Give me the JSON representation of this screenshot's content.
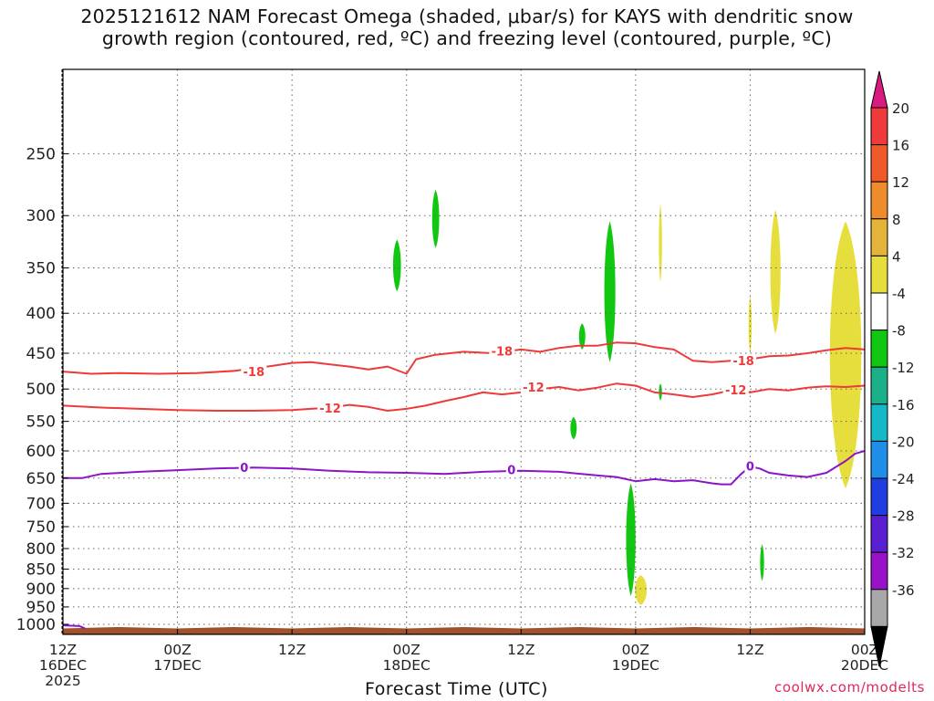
{
  "title": {
    "line1": "2025121612 NAM Forecast Omega (shaded, μbar/s) for KAYS with dendritic snow",
    "line2": "growth region (contoured, red, ºC) and freezing level (contoured, purple, ºC)"
  },
  "credit": "coolwx.com/modelts",
  "chart_data": {
    "type": "heatmap",
    "title": "2025121612 NAM Forecast Omega (shaded, μbar/s) for KAYS with dendritic snow growth region (contoured, red, ºC) and freezing level (contoured, purple, ºC)",
    "xlabel": "Forecast Time (UTC)",
    "ylabel": "",
    "y_axis": {
      "scale": "log",
      "reversed": true,
      "range": [
        195,
        1030
      ],
      "ticks": [
        250,
        300,
        350,
        400,
        450,
        500,
        550,
        600,
        650,
        700,
        750,
        800,
        850,
        900,
        950,
        1000
      ]
    },
    "x_axis": {
      "range_hours": [
        0,
        84
      ],
      "ticks": [
        {
          "h": 0,
          "lines": [
            "12Z",
            "16DEC",
            "2025"
          ]
        },
        {
          "h": 12,
          "lines": [
            "00Z",
            "17DEC"
          ]
        },
        {
          "h": 24,
          "lines": [
            "12Z"
          ]
        },
        {
          "h": 36,
          "lines": [
            "00Z",
            "18DEC"
          ]
        },
        {
          "h": 48,
          "lines": [
            "12Z"
          ]
        },
        {
          "h": 60,
          "lines": [
            "00Z",
            "19DEC"
          ]
        },
        {
          "h": 72,
          "lines": [
            "12Z"
          ]
        },
        {
          "h": 84,
          "lines": [
            "00Z",
            "20DEC"
          ]
        }
      ]
    },
    "grid": true,
    "colorbar": {
      "labels": [
        "20",
        "16",
        "12",
        "8",
        "4",
        "-4",
        "-8",
        "-12",
        "-16",
        "-20",
        "-24",
        "-28",
        "-32",
        "-36"
      ],
      "colors": [
        "#d91b80",
        "#ee3a3a",
        "#f05a28",
        "#ee8b2a",
        "#e4b33a",
        "#e6de3c",
        "#ffffff",
        "#12c712",
        "#1bb08a",
        "#14b8c8",
        "#1e8ee8",
        "#1f3ee0",
        "#5a1fd2",
        "#9a12c8",
        "#a8a8a8",
        "#000000"
      ]
    },
    "omega_regions": [
      {
        "value": -6,
        "color": "#12c712",
        "h": [
          34.5,
          35.5
        ],
        "p": [
          322,
          375
        ]
      },
      {
        "value": -6,
        "color": "#12c712",
        "h": [
          38.6,
          39.5
        ],
        "p": [
          278,
          330
        ]
      },
      {
        "value": -6,
        "color": "#12c712",
        "h": [
          54.0,
          54.8
        ],
        "p": [
          412,
          445
        ]
      },
      {
        "value": -6,
        "color": "#12c712",
        "h": [
          56.6,
          58.0
        ],
        "p": [
          305,
          462
        ]
      },
      {
        "value": -6,
        "color": "#12c712",
        "h": [
          53.1,
          53.9
        ],
        "p": [
          543,
          580
        ]
      },
      {
        "value": -6,
        "color": "#12c712",
        "h": [
          58.9,
          60.1
        ],
        "p": [
          660,
          920
        ]
      },
      {
        "value": -6,
        "color": "#12c712",
        "h": [
          62.4,
          62.8
        ],
        "p": [
          492,
          517
        ]
      },
      {
        "value": -6,
        "color": "#12c712",
        "h": [
          73.0,
          73.5
        ],
        "p": [
          790,
          880
        ]
      },
      {
        "value": 5,
        "color": "#e6de3c",
        "h": [
          62.4,
          62.8
        ],
        "p": [
          290,
          365
        ]
      },
      {
        "value": 5,
        "color": "#e6de3c",
        "h": [
          59.8,
          61.3
        ],
        "p": [
          865,
          945
        ]
      },
      {
        "value": 5,
        "color": "#e6de3c",
        "h": [
          71.8,
          72.2
        ],
        "p": [
          380,
          450
        ]
      },
      {
        "value": 5,
        "color": "#e6de3c",
        "h": [
          74.0,
          75.3
        ],
        "p": [
          295,
          425
        ]
      },
      {
        "value": 5,
        "color": "#e6de3c",
        "h": [
          80.0,
          84.0
        ],
        "p": [
          305,
          670
        ]
      }
    ],
    "series": [
      {
        "name": "-18",
        "color": "#ee3a3a",
        "x": [
          0,
          3,
          6,
          10,
          14,
          18,
          22,
          24,
          26,
          28,
          30,
          32,
          34,
          36,
          37,
          39,
          42,
          45,
          48,
          50,
          52,
          54,
          56,
          58,
          60,
          62,
          64,
          66,
          68,
          70,
          72,
          74,
          76,
          78,
          80,
          82,
          84
        ],
        "y": [
          475,
          478,
          477,
          478,
          477,
          474,
          467,
          463,
          462,
          465,
          468,
          472,
          468,
          478,
          458,
          452,
          448,
          450,
          445,
          448,
          443,
          440,
          440,
          436,
          437,
          442,
          445,
          460,
          462,
          460,
          458,
          454,
          453,
          450,
          446,
          443,
          445
        ]
      },
      {
        "name": "-12",
        "color": "#ee3a3a",
        "x": [
          0,
          4,
          8,
          12,
          16,
          20,
          24,
          26,
          28,
          30,
          32,
          34,
          36,
          38,
          40,
          42,
          44,
          46,
          48,
          50,
          52,
          54,
          56,
          58,
          60,
          62,
          64,
          66,
          68,
          70,
          72,
          74,
          76,
          78,
          80,
          82,
          84
        ],
        "y": [
          525,
          528,
          530,
          532,
          533,
          533,
          532,
          530,
          528,
          524,
          527,
          533,
          530,
          525,
          518,
          512,
          505,
          508,
          505,
          500,
          497,
          502,
          498,
          492,
          495,
          505,
          508,
          512,
          508,
          502,
          505,
          500,
          502,
          498,
          496,
          497,
          495
        ]
      },
      {
        "name": "0",
        "color": "#8b14c8",
        "x": [
          0,
          2,
          4,
          8,
          12,
          16,
          20,
          24,
          28,
          32,
          36,
          40,
          44,
          48,
          52,
          56,
          58,
          60,
          62,
          64,
          66,
          68,
          69,
          70,
          71,
          72,
          73,
          74,
          76,
          78,
          80,
          82,
          83,
          84
        ],
        "y": [
          650,
          650,
          642,
          638,
          635,
          632,
          630,
          632,
          636,
          639,
          640,
          642,
          638,
          636,
          638,
          645,
          648,
          656,
          652,
          656,
          654,
          660,
          662,
          662,
          643,
          628,
          632,
          640,
          645,
          648,
          640,
          618,
          605,
          600
        ]
      }
    ],
    "contour_labels": [
      {
        "text": "-18",
        "h": 20,
        "p": 475,
        "color": "#ee3a3a"
      },
      {
        "text": "-18",
        "h": 46,
        "p": 447,
        "color": "#ee3a3a"
      },
      {
        "text": "-18",
        "h": 71.3,
        "p": 460,
        "color": "#ee3a3a"
      },
      {
        "text": "-12",
        "h": 28,
        "p": 529,
        "color": "#ee3a3a"
      },
      {
        "text": "-12",
        "h": 49.3,
        "p": 497,
        "color": "#ee3a3a"
      },
      {
        "text": "-12",
        "h": 70.5,
        "p": 501,
        "color": "#ee3a3a"
      },
      {
        "text": "0",
        "h": 19,
        "p": 630,
        "color": "#8b14c8"
      },
      {
        "text": "0",
        "h": 47,
        "p": 634,
        "color": "#8b14c8"
      },
      {
        "text": "0",
        "h": 72,
        "p": 627,
        "color": "#8b14c8"
      }
    ],
    "terrain": {
      "color": "#a0522d",
      "p_top": 1012
    }
  }
}
